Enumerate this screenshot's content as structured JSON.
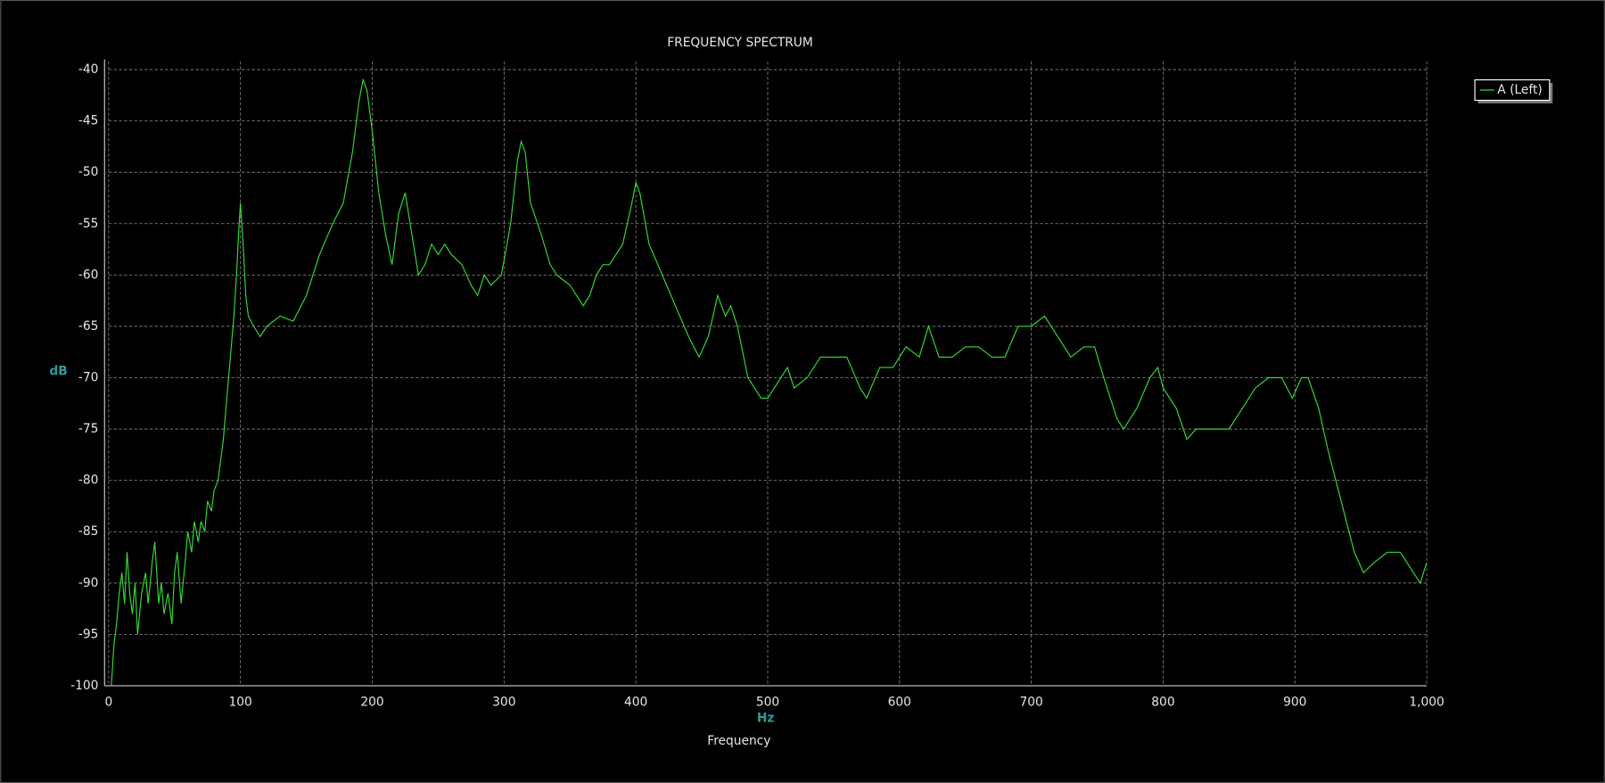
{
  "chart_data": {
    "type": "line",
    "title": "FREQUENCY SPECTRUM",
    "y_label": "dB",
    "x_unit": "Hz",
    "x_label": "Frequency",
    "legend": "top-right",
    "grid": true,
    "xlim": [
      0,
      1000
    ],
    "xticks": [
      0,
      100,
      200,
      300,
      400,
      500,
      600,
      700,
      800,
      900,
      {
        "value": 1000,
        "label": "1,000"
      }
    ],
    "ylim": [
      -100,
      -40
    ],
    "yticks": [
      -40,
      -45,
      -50,
      -55,
      -60,
      -65,
      -70,
      -75,
      -80,
      -85,
      -90,
      -95,
      -100
    ],
    "series": [
      {
        "name": "A (Left)",
        "color": "#33dd33",
        "x": [
          2,
          4,
          6,
          8,
          10,
          12,
          14,
          16,
          18,
          20,
          22,
          25,
          28,
          30,
          33,
          35,
          38,
          40,
          42,
          45,
          48,
          50,
          52,
          55,
          58,
          60,
          63,
          65,
          68,
          70,
          73,
          75,
          78,
          80,
          83,
          85,
          87,
          89,
          91,
          93,
          95,
          97,
          99,
          100,
          102,
          104,
          106,
          110,
          115,
          120,
          130,
          140,
          150,
          160,
          170,
          178,
          185,
          190,
          193,
          196,
          200,
          205,
          210,
          215,
          220,
          225,
          230,
          235,
          240,
          245,
          250,
          255,
          260,
          268,
          275,
          280,
          285,
          290,
          298,
          305,
          310,
          313,
          316,
          320,
          328,
          335,
          340,
          350,
          360,
          365,
          370,
          375,
          380,
          390,
          397,
          400,
          403,
          410,
          420,
          430,
          440,
          448,
          455,
          462,
          468,
          472,
          477,
          485,
          495,
          500,
          510,
          515,
          520,
          530,
          540,
          550,
          560,
          570,
          575,
          585,
          595,
          605,
          615,
          622,
          630,
          640,
          650,
          660,
          670,
          680,
          690,
          700,
          710,
          720,
          730,
          740,
          748,
          755,
          765,
          770,
          780,
          790,
          796,
          800,
          810,
          818,
          825,
          840,
          850,
          860,
          870,
          880,
          890,
          898,
          905,
          910,
          918,
          925,
          935,
          945,
          952,
          960,
          970,
          980,
          990,
          995,
          1000
        ],
        "values": [
          -100,
          -96,
          -94,
          -91,
          -89,
          -92,
          -87,
          -91,
          -93,
          -90,
          -95,
          -91,
          -89,
          -92,
          -88,
          -86,
          -92,
          -90,
          -93,
          -91,
          -94,
          -89,
          -87,
          -92,
          -88,
          -85,
          -87,
          -84,
          -86,
          -84,
          -85,
          -82,
          -83,
          -81,
          -80,
          -78,
          -76,
          -73,
          -70,
          -67,
          -64,
          -60,
          -55,
          -53,
          -57,
          -62,
          -64,
          -65,
          -66,
          -65,
          -64,
          -64.5,
          -62,
          -58,
          -55,
          -53,
          -48,
          -43,
          -41,
          -42,
          -46,
          -52,
          -56,
          -59,
          -54,
          -52,
          -56,
          -60,
          -59,
          -57,
          -58,
          -57,
          -58,
          -59,
          -61,
          -62,
          -60,
          -61,
          -60,
          -55,
          -49,
          -47,
          -48,
          -53,
          -56,
          -59,
          -60,
          -61,
          -63,
          -62,
          -60,
          -59,
          -59,
          -57,
          -53,
          -51,
          -52,
          -57,
          -60,
          -63,
          -66,
          -68,
          -66,
          -62,
          -64,
          -63,
          -65,
          -70,
          -72,
          -72,
          -70,
          -69,
          -71,
          -70,
          -68,
          -68,
          -68,
          -71,
          -72,
          -69,
          -69,
          -67,
          -68,
          -65,
          -68,
          -68,
          -67,
          -67,
          -68,
          -68,
          -65,
          -65,
          -64,
          -66,
          -68,
          -67,
          -67,
          -70,
          -74,
          -75,
          -73,
          -70,
          -69,
          -71,
          -73,
          -76,
          -75,
          -75,
          -75,
          -73,
          -71,
          -70,
          -70,
          -72,
          -70,
          -70,
          -73,
          -77,
          -82,
          -87,
          -89,
          -88,
          -87,
          -87,
          -89,
          -90,
          -88
        ]
      }
    ]
  }
}
